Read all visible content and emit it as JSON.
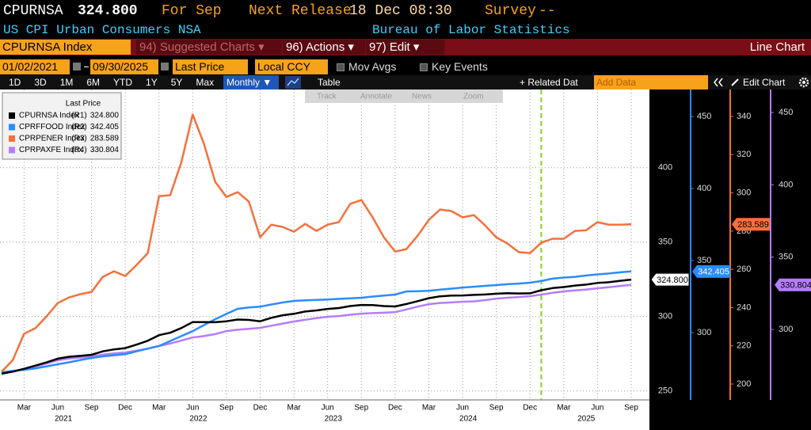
{
  "header": {
    "ticker": "CPURNSA",
    "price": "324.800",
    "period": "For Sep",
    "release_label": "Next Release",
    "release": "18 Dec 08:30",
    "survey_label": "Survey",
    "survey": "--",
    "description": "US CPI Urban Consumers NSA",
    "source": "Bureau of Labor Statistics"
  },
  "toolbar": {
    "security": "CPURNSA Index",
    "suggested": "94) Suggested Charts ▾",
    "actions": "96) Actions ▾",
    "edit": "97) Edit ▾",
    "chart_type": "Line Chart"
  },
  "controls": {
    "start_date": "01/02/2021",
    "end_date": "09/30/2025",
    "field": "Last Price",
    "currency": "Local CCY",
    "mov_avgs": "Mov Avgs",
    "key_events": "Key Events"
  },
  "range_buttons": [
    "1D",
    "3D",
    "1M",
    "6M",
    "YTD",
    "1Y",
    "5Y",
    "Max"
  ],
  "view": {
    "frequency": "Monthly ▼",
    "table": "Table",
    "related_data": "+ Related Dat",
    "add_data": "Add Data",
    "edit_chart": "Edit Chart"
  },
  "chart_tools": [
    "Track",
    "Annotate",
    "News",
    "Zoom"
  ],
  "chart_data": {
    "type": "line",
    "legend_title": "Last Price",
    "grid": true,
    "event_line": "2025-01",
    "event_line_color": "#7ed321",
    "x": [
      "2021-01",
      "2021-02",
      "2021-03",
      "2021-04",
      "2021-05",
      "2021-06",
      "2021-07",
      "2021-08",
      "2021-09",
      "2021-10",
      "2021-11",
      "2021-12",
      "2022-01",
      "2022-02",
      "2022-03",
      "2022-04",
      "2022-05",
      "2022-06",
      "2022-07",
      "2022-08",
      "2022-09",
      "2022-10",
      "2022-11",
      "2022-12",
      "2023-01",
      "2023-02",
      "2023-03",
      "2023-04",
      "2023-05",
      "2023-06",
      "2023-07",
      "2023-08",
      "2023-09",
      "2023-10",
      "2023-11",
      "2023-12",
      "2024-01",
      "2024-02",
      "2024-03",
      "2024-04",
      "2024-05",
      "2024-06",
      "2024-07",
      "2024-08",
      "2024-09",
      "2024-10",
      "2024-11",
      "2024-12",
      "2025-01",
      "2025-02",
      "2025-03",
      "2025-04",
      "2025-05",
      "2025-06",
      "2025-07",
      "2025-08",
      "2025-09"
    ],
    "xticks": [
      {
        "value": "2021-03",
        "label": "Mar"
      },
      {
        "value": "2021-06",
        "label": "Jun"
      },
      {
        "value": "2021-09",
        "label": "Sep"
      },
      {
        "value": "2021-12",
        "label": "Dec"
      },
      {
        "value": "2022-03",
        "label": "Mar"
      },
      {
        "value": "2022-06",
        "label": "Jun"
      },
      {
        "value": "2022-09",
        "label": "Sep"
      },
      {
        "value": "2022-12",
        "label": "Dec"
      },
      {
        "value": "2023-03",
        "label": "Mar"
      },
      {
        "value": "2023-06",
        "label": "Jun"
      },
      {
        "value": "2023-09",
        "label": "Sep"
      },
      {
        "value": "2023-12",
        "label": "Dec"
      },
      {
        "value": "2024-03",
        "label": "Mar"
      },
      {
        "value": "2024-06",
        "label": "Jun"
      },
      {
        "value": "2024-09",
        "label": "Sep"
      },
      {
        "value": "2024-12",
        "label": "Dec"
      },
      {
        "value": "2025-03",
        "label": "Mar"
      },
      {
        "value": "2025-06",
        "label": "Jun"
      },
      {
        "value": "2025-09",
        "label": "Sep"
      }
    ],
    "years": [
      "2021",
      "2022",
      "2023",
      "2024",
      "2025"
    ],
    "ylim": [
      244,
      452.5
    ],
    "yticks": [
      250,
      300,
      350,
      400
    ],
    "y2lim": [
      253.3,
      468.7
    ],
    "y2ticks": [
      300,
      350,
      400,
      450
    ],
    "y3lim": [
      191.7,
      354.1
    ],
    "y3ticks": [
      200,
      220,
      240,
      260,
      280,
      300,
      320,
      340
    ],
    "y4lim": [
      251.3,
      465.9
    ],
    "y4ticks": [
      300,
      350,
      400,
      450
    ],
    "series": [
      {
        "name": "CPURNSA Index",
        "axis_label": "(R1)",
        "axis": "y",
        "color": "#000000",
        "last_value_label": "324.800",
        "values": [
          261.582,
          263.014,
          264.877,
          267.054,
          269.195,
          271.696,
          273.003,
          273.567,
          274.31,
          276.589,
          277.948,
          278.802,
          281.148,
          283.716,
          287.504,
          289.109,
          292.296,
          296.311,
          296.276,
          296.171,
          296.808,
          298.012,
          297.711,
          296.797,
          299.17,
          300.84,
          301.836,
          303.363,
          304.127,
          305.109,
          305.691,
          307.026,
          307.789,
          307.671,
          307.051,
          306.746,
          308.417,
          310.326,
          312.332,
          313.548,
          314.069,
          314.175,
          314.54,
          314.796,
          315.301,
          315.664,
          315.493,
          315.605,
          317.671,
          319.082,
          319.799,
          320.795,
          321.465,
          322.561,
          323.048,
          323.976,
          324.8
        ]
      },
      {
        "name": "CPRFFOOD Index",
        "axis_label": "(R2)",
        "axis": "y2",
        "color": "#2a8cff",
        "last_value_label": "342.405",
        "values": [
          272.5,
          273.4,
          274.2,
          275.1,
          276.6,
          278.0,
          279.4,
          281.0,
          282.4,
          283.5,
          284.3,
          285.0,
          287.0,
          288.9,
          290.7,
          294.2,
          297.6,
          301.0,
          305.2,
          309.3,
          313.0,
          316.5,
          317.4,
          318.0,
          319.5,
          320.9,
          322.0,
          322.4,
          322.7,
          323.0,
          323.4,
          323.8,
          324.2,
          325.0,
          325.7,
          326.4,
          328.6,
          328.7,
          329.0,
          329.8,
          330.5,
          331.3,
          331.8,
          332.4,
          333.0,
          333.6,
          334.0,
          334.6,
          335.8,
          337.4,
          338.2,
          338.7,
          339.6,
          340.4,
          341.0,
          341.8,
          342.405
        ]
      },
      {
        "name": "CPRPENER Index",
        "axis_label": "(R3)",
        "axis": "y3",
        "color": "#f5703c",
        "last_value_label": "283.589",
        "values": [
          206.4,
          212.6,
          226.3,
          229.2,
          235.4,
          242.4,
          245.3,
          247.0,
          248.2,
          256.1,
          259.0,
          256.5,
          262.3,
          268.5,
          298.3,
          298.8,
          316.2,
          341.0,
          325.7,
          305.8,
          297.9,
          300.4,
          295.4,
          276.8,
          283.4,
          282.2,
          279.7,
          283.8,
          280.1,
          283.4,
          284.7,
          294.2,
          296.3,
          287.2,
          276.8,
          269.3,
          270.6,
          277.6,
          285.9,
          291.3,
          290.5,
          287.2,
          288.4,
          283.0,
          276.8,
          273.5,
          269.0,
          268.5,
          273.9,
          276.0,
          276.0,
          280.1,
          280.5,
          284.7,
          283.4,
          283.4,
          283.589
        ]
      },
      {
        "name": "CPRPAXFE Index",
        "axis_label": "(R4)",
        "axis": "y4",
        "color": "#b57cff",
        "last_value_label": "330.804",
        "values": [
          270.4,
          271.2,
          272.5,
          274.2,
          276.5,
          278.7,
          279.9,
          280.6,
          281.4,
          282.6,
          283.5,
          284.1,
          285.3,
          286.8,
          288.5,
          290.3,
          292.3,
          294.5,
          295.4,
          296.8,
          298.9,
          299.8,
          300.4,
          301.1,
          302.6,
          304.1,
          305.5,
          306.7,
          307.8,
          308.8,
          309.3,
          310.2,
          310.9,
          311.3,
          311.6,
          312.0,
          313.8,
          315.8,
          317.5,
          318.3,
          318.7,
          319.2,
          319.4,
          320.3,
          321.3,
          321.9,
          322.4,
          323.0,
          324.1,
          325.3,
          326.3,
          327.0,
          327.6,
          328.5,
          329.2,
          330.1,
          330.804
        ]
      }
    ]
  }
}
